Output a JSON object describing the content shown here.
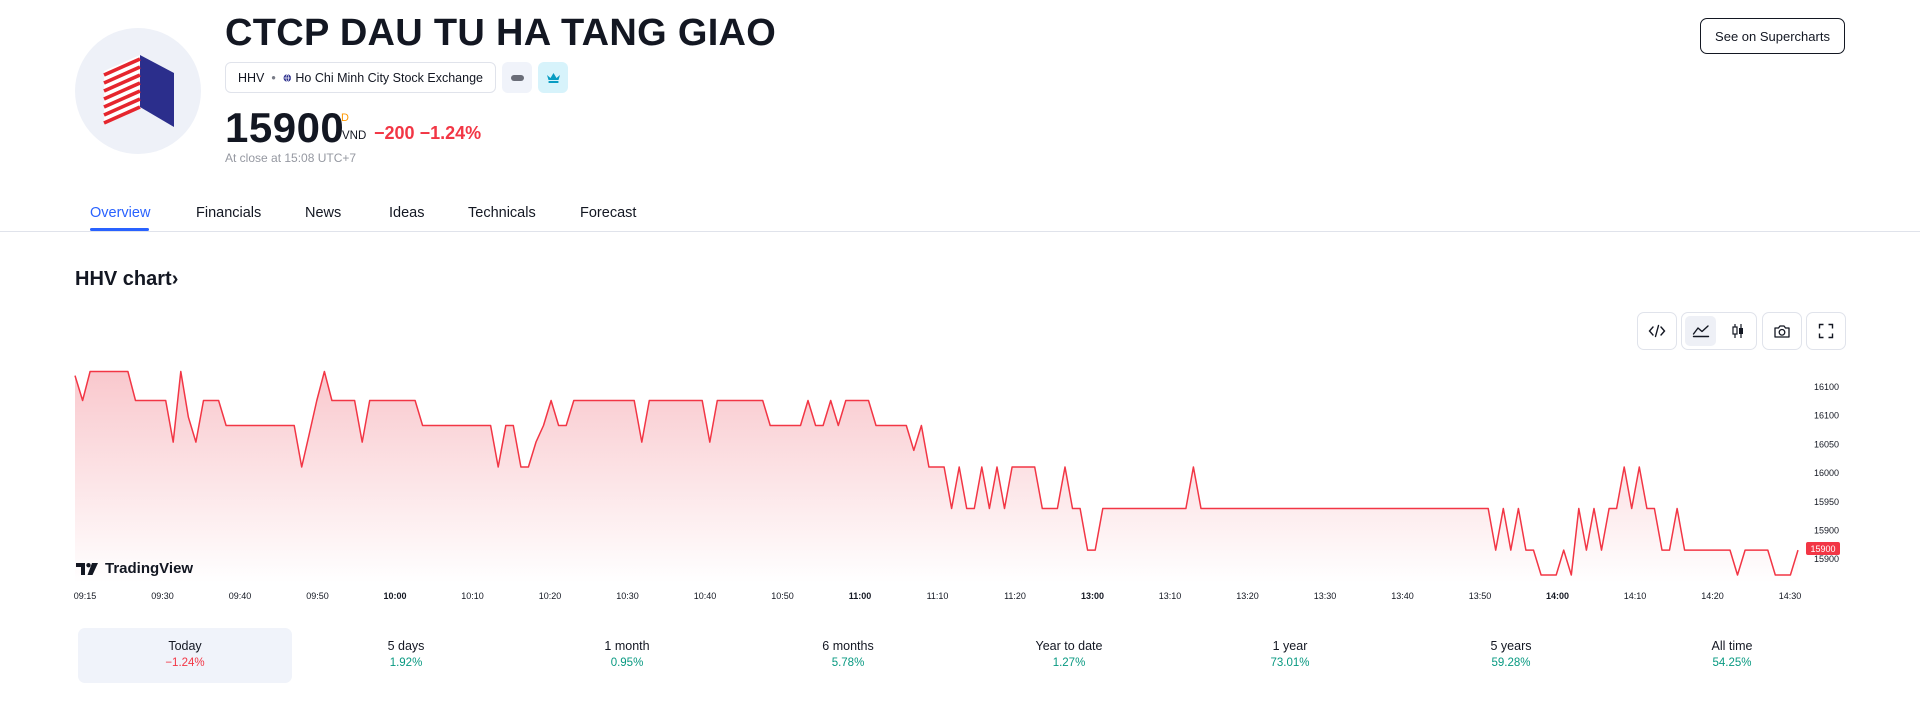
{
  "header": {
    "company_name": "CTCP DAU TU HA TANG GIAO",
    "ticker": "HHV",
    "exchange": "Ho Chi Minh City Stock Exchange",
    "price": "15900",
    "price_superscript": "D",
    "currency": "VND",
    "change": "−200",
    "change_percent": "−1.24%",
    "close_note": "At close at 15:08 UTC+7",
    "supercharts_label": "See on Supercharts",
    "icons": [
      "logo-icon",
      "globe-icon",
      "minus-icon",
      "crown-icon"
    ]
  },
  "tabs": [
    {
      "label": "Overview",
      "active": true
    },
    {
      "label": "Financials"
    },
    {
      "label": "News"
    },
    {
      "label": "Ideas"
    },
    {
      "label": "Technicals"
    },
    {
      "label": "Forecast"
    }
  ],
  "chart_section": {
    "title": "HHV chart",
    "title_suffix": "›",
    "tradingview_label": "TradingView",
    "toolbar_icons": [
      "embed-code-icon",
      "area-chart-icon",
      "candles-icon",
      "camera-icon",
      "fullscreen-icon"
    ]
  },
  "chart_data": {
    "type": "area",
    "series": [
      {
        "values": [
          16110,
          16080,
          16115,
          16115,
          16115,
          16115,
          16115,
          16115,
          16080,
          16080,
          16080,
          16080,
          16080,
          16030,
          16115,
          16060,
          16030,
          16080,
          16080,
          16080,
          16050,
          16050,
          16050,
          16050,
          16050,
          16050,
          16050,
          16050,
          16050,
          16050,
          16000,
          16040,
          16080,
          16115,
          16080,
          16080,
          16080,
          16080,
          16030,
          16080,
          16080,
          16080,
          16080,
          16080,
          16080,
          16080,
          16050,
          16050,
          16050,
          16050,
          16050,
          16050,
          16050,
          16050,
          16050,
          16050,
          16000,
          16050,
          16050,
          16000,
          16000,
          16030,
          16050,
          16080,
          16050,
          16050,
          16080,
          16080,
          16080,
          16080,
          16080,
          16080,
          16080,
          16080,
          16080,
          16030,
          16080,
          16080,
          16080,
          16080,
          16080,
          16080,
          16080,
          16080,
          16030,
          16080,
          16080,
          16080,
          16080,
          16080,
          16080,
          16080,
          16050,
          16050,
          16050,
          16050,
          16050,
          16080,
          16050,
          16050,
          16080,
          16050,
          16080,
          16080,
          16080,
          16080,
          16050,
          16050,
          16050,
          16050,
          16050,
          16020,
          16050,
          16000,
          16000,
          16000,
          15950,
          16000,
          15950,
          15950,
          16000,
          15950,
          16000,
          15950,
          16000,
          16000,
          16000,
          16000,
          15950,
          15950,
          15950,
          16000,
          15950,
          15950,
          15900,
          15900,
          15950,
          15950,
          15950,
          15950,
          15950,
          15950,
          15950,
          15950,
          15950,
          15950,
          15950,
          15950,
          16000,
          15950,
          15950,
          15950,
          15950,
          15950,
          15950,
          15950,
          15950,
          15950,
          15950,
          15950,
          15950,
          15950,
          15950,
          15950,
          15950,
          15950,
          15950,
          15950,
          15950,
          15950,
          15950,
          15950,
          15950,
          15950,
          15950,
          15950,
          15950,
          15950,
          15950,
          15950,
          15950,
          15950,
          15950,
          15950,
          15950,
          15950,
          15950,
          15950,
          15900,
          15950,
          15900,
          15950,
          15900,
          15900,
          15870,
          15870,
          15870,
          15900,
          15870,
          15950,
          15900,
          15950,
          15900,
          15950,
          15950,
          16000,
          15950,
          16000,
          15950,
          15950,
          15900,
          15900,
          15950,
          15900,
          15900,
          15900,
          15900,
          15900,
          15900,
          15900,
          15870,
          15900,
          15900,
          15900,
          15900,
          15870,
          15870,
          15870,
          15900
        ]
      }
    ],
    "x_ticks": [
      {
        "label": "09:15",
        "bold": false
      },
      {
        "label": "09:30",
        "bold": false
      },
      {
        "label": "09:40",
        "bold": false
      },
      {
        "label": "09:50",
        "bold": false
      },
      {
        "label": "10:00",
        "bold": true
      },
      {
        "label": "10:10",
        "bold": false
      },
      {
        "label": "10:20",
        "bold": false
      },
      {
        "label": "10:30",
        "bold": false
      },
      {
        "label": "10:40",
        "bold": false
      },
      {
        "label": "10:50",
        "bold": false
      },
      {
        "label": "11:00",
        "bold": true
      },
      {
        "label": "11:10",
        "bold": false
      },
      {
        "label": "11:20",
        "bold": false
      },
      {
        "label": "13:00",
        "bold": true
      },
      {
        "label": "13:10",
        "bold": false
      },
      {
        "label": "13:20",
        "bold": false
      },
      {
        "label": "13:30",
        "bold": false
      },
      {
        "label": "13:40",
        "bold": false
      },
      {
        "label": "13:50",
        "bold": false
      },
      {
        "label": "14:00",
        "bold": true
      },
      {
        "label": "14:10",
        "bold": false
      },
      {
        "label": "14:20",
        "bold": false
      },
      {
        "label": "14:30",
        "bold": false
      }
    ],
    "y_ticks": [
      "16100",
      "16100",
      "16050",
      "16000",
      "15950",
      "15900",
      "15900"
    ],
    "last_price_label": "15900",
    "ylim": [
      15870,
      16130
    ],
    "grid": false,
    "colors": {
      "line": "#f23645",
      "fill_top": "#f9c8cd",
      "fill_bottom": "#ffffff",
      "label_bg": "#f23645"
    }
  },
  "periods": [
    {
      "label": "Today",
      "value": "−1.24%",
      "positive": false,
      "active": true
    },
    {
      "label": "5 days",
      "value": "1.92%",
      "positive": true
    },
    {
      "label": "1 month",
      "value": "0.95%",
      "positive": true
    },
    {
      "label": "6 months",
      "value": "5.78%",
      "positive": true
    },
    {
      "label": "Year to date",
      "value": "1.27%",
      "positive": true
    },
    {
      "label": "1 year",
      "value": "73.01%",
      "positive": true
    },
    {
      "label": "5 years",
      "value": "59.28%",
      "positive": true
    },
    {
      "label": "All time",
      "value": "54.25%",
      "positive": true
    }
  ],
  "colors": {
    "accent": "#2962ff",
    "negative": "#f23645",
    "positive": "#089981"
  }
}
